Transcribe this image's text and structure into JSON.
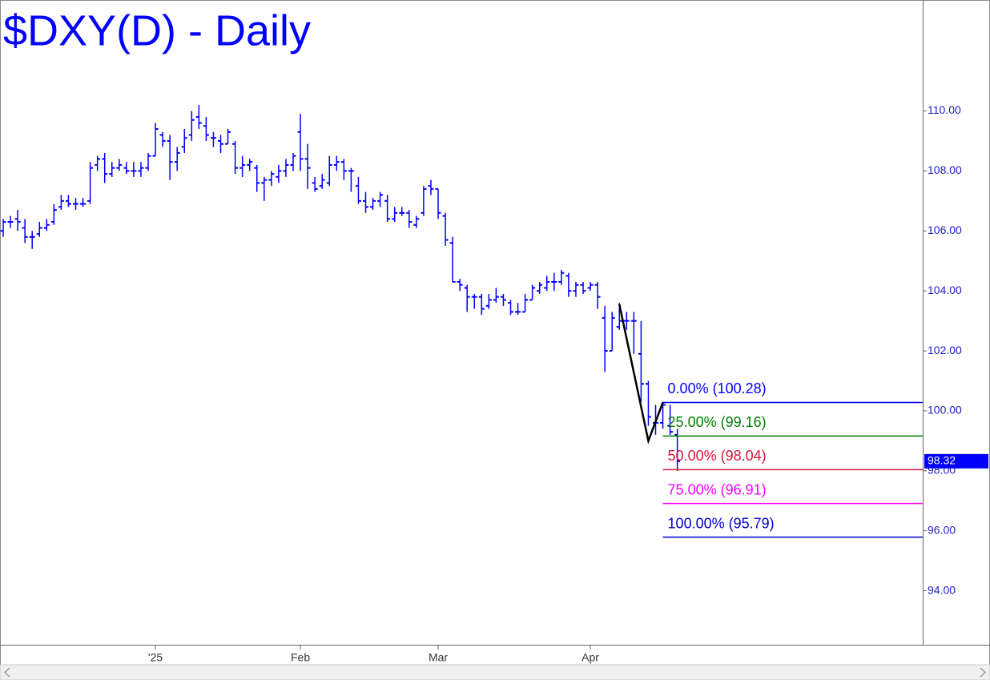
{
  "chart_data": {
    "type": "ohlc",
    "title": "$DXY(D) - Daily",
    "color": "#0000ff",
    "categories": [
      null,
      null,
      null,
      null,
      null,
      null,
      null,
      null,
      null,
      null,
      null,
      null,
      null,
      null,
      null,
      null,
      null,
      null,
      null,
      null,
      null,
      "'25",
      null,
      null,
      null,
      null,
      null,
      null,
      null,
      null,
      null,
      null,
      null,
      null,
      null,
      null,
      null,
      null,
      null,
      null,
      null,
      "Feb",
      null,
      null,
      null,
      null,
      null,
      null,
      null,
      null,
      null,
      null,
      null,
      null,
      null,
      null,
      null,
      null,
      null,
      null,
      "Mar",
      null,
      null,
      null,
      null,
      null,
      null,
      null,
      null,
      null,
      null,
      null,
      null,
      null,
      null,
      null,
      null,
      null,
      null,
      null,
      null,
      "Apr",
      null,
      null,
      null,
      null,
      null,
      null,
      null,
      null,
      null,
      null,
      null,
      null
    ],
    "open": [
      106.0,
      106.3,
      106.4,
      106.1,
      105.8,
      105.9,
      106.1,
      106.3,
      106.8,
      107.0,
      106.9,
      106.9,
      107.0,
      108.2,
      108.4,
      107.9,
      108.1,
      108.1,
      108.0,
      108.0,
      108.1,
      108.5,
      109.2,
      109.0,
      108.3,
      108.8,
      109.2,
      109.8,
      109.5,
      109.1,
      109.0,
      108.9,
      108.9,
      108.1,
      108.2,
      108.1,
      107.6,
      107.7,
      107.8,
      108.0,
      108.2,
      109.3,
      108.4,
      107.6,
      107.5,
      107.6,
      108.2,
      108.3,
      108.0,
      107.5,
      107.0,
      106.8,
      107.0,
      107.0,
      106.4,
      106.6,
      106.6,
      106.2,
      106.6,
      107.5,
      107.4,
      106.5,
      105.6,
      104.3,
      104.1,
      103.8,
      103.8,
      103.5,
      103.7,
      103.8,
      103.6,
      103.3,
      103.3,
      103.7,
      104.0,
      104.1,
      104.3,
      104.3,
      104.5,
      104.0,
      104.2,
      104.1,
      104.2,
      103.1,
      102.0,
      102.8,
      103.0,
      103.0,
      101.9,
      100.9,
      99.6,
      99.6,
      99.5,
      99.2
    ],
    "high": [
      106.4,
      106.5,
      106.7,
      106.4,
      106.0,
      106.3,
      106.4,
      106.9,
      107.2,
      107.2,
      107.1,
      107.1,
      108.3,
      108.5,
      108.6,
      108.3,
      108.4,
      108.3,
      108.3,
      108.3,
      108.6,
      109.6,
      109.3,
      109.2,
      108.8,
      109.4,
      110.0,
      110.2,
      109.8,
      109.3,
      109.2,
      109.4,
      109.0,
      108.5,
      108.4,
      108.2,
      107.8,
      108.0,
      108.2,
      108.4,
      108.6,
      109.9,
      108.9,
      107.8,
      107.9,
      108.5,
      108.5,
      108.4,
      108.1,
      107.8,
      107.3,
      107.1,
      107.3,
      107.2,
      106.8,
      106.8,
      106.7,
      106.5,
      107.5,
      107.7,
      107.4,
      106.6,
      105.8,
      104.4,
      104.2,
      103.9,
      103.9,
      103.9,
      104.1,
      103.9,
      103.7,
      103.6,
      103.9,
      104.2,
      104.3,
      104.5,
      104.6,
      104.7,
      104.6,
      104.3,
      104.3,
      104.3,
      104.3,
      103.5,
      103.3,
      103.6,
      103.3,
      103.3,
      103.0,
      101.0,
      100.2,
      100.3,
      100.2,
      99.4
    ],
    "low": [
      105.8,
      106.1,
      106.0,
      105.6,
      105.4,
      105.8,
      106.0,
      106.2,
      106.7,
      106.8,
      106.7,
      106.8,
      106.9,
      108.0,
      107.6,
      107.8,
      108.0,
      107.9,
      107.8,
      107.8,
      108.0,
      108.5,
      108.8,
      107.7,
      108.0,
      108.6,
      109.0,
      109.4,
      109.0,
      108.8,
      108.6,
      108.9,
      107.9,
      107.8,
      108.0,
      107.3,
      107.0,
      107.5,
      107.6,
      107.8,
      108.0,
      108.0,
      107.4,
      107.3,
      107.4,
      107.5,
      108.0,
      107.7,
      107.3,
      106.9,
      106.6,
      106.7,
      106.8,
      106.3,
      106.3,
      106.5,
      106.1,
      106.1,
      106.5,
      107.2,
      106.4,
      105.5,
      104.3,
      104.0,
      103.3,
      103.4,
      103.2,
      103.4,
      103.6,
      103.5,
      103.2,
      103.2,
      103.3,
      103.7,
      103.9,
      104.0,
      104.0,
      104.2,
      103.8,
      103.8,
      103.9,
      104.0,
      103.4,
      101.3,
      102.0,
      102.7,
      102.7,
      101.9,
      100.3,
      99.5,
      99.2,
      99.4,
      99.2,
      98.0
    ],
    "close": [
      106.3,
      106.3,
      106.3,
      105.8,
      105.8,
      106.1,
      106.2,
      106.7,
      107.0,
      106.9,
      106.9,
      106.9,
      108.1,
      108.4,
      107.9,
      108.1,
      108.2,
      108.0,
      108.0,
      108.1,
      108.5,
      109.4,
      109.0,
      108.3,
      108.6,
      109.1,
      109.7,
      109.6,
      109.2,
      109.1,
      108.9,
      109.3,
      108.1,
      108.2,
      108.3,
      107.6,
      107.7,
      107.9,
      108.0,
      108.2,
      108.5,
      108.4,
      108.1,
      107.4,
      107.7,
      108.2,
      108.3,
      108.0,
      108.0,
      107.0,
      106.8,
      107.0,
      107.2,
      106.4,
      106.6,
      106.6,
      106.3,
      106.4,
      107.4,
      107.4,
      106.6,
      105.7,
      104.3,
      104.2,
      103.8,
      103.8,
      103.4,
      103.7,
      103.8,
      103.7,
      103.3,
      103.3,
      103.7,
      104.1,
      104.2,
      104.3,
      104.3,
      104.6,
      104.0,
      104.2,
      104.0,
      104.2,
      103.8,
      102.0,
      103.1,
      103.0,
      103.0,
      103.0,
      100.9,
      99.8,
      99.6,
      100.2,
      99.3,
      98.32
    ],
    "ylim": [
      92.2,
      113.7
    ],
    "yticks": [
      {
        "value": 94,
        "label": "94.00"
      },
      {
        "value": 96,
        "label": "96.00"
      },
      {
        "value": 98,
        "label": "98.00"
      },
      {
        "value": 100,
        "label": "100.00"
      },
      {
        "value": 102,
        "label": "102.00"
      },
      {
        "value": 104,
        "label": "104.00"
      },
      {
        "value": 106,
        "label": "106.00"
      },
      {
        "value": 108,
        "label": "108.00"
      },
      {
        "value": 110,
        "label": "110.00"
      }
    ],
    "swing": {
      "x": [
        85,
        89,
        91
      ],
      "values": [
        103.55,
        99.0,
        100.28
      ],
      "color": "#000000"
    },
    "fib_levels": [
      {
        "value": 100.28,
        "label": "0.00% (100.28)",
        "color": "#0000ff"
      },
      {
        "value": 99.16,
        "label": "25.00% (99.16)",
        "color": "#008000"
      },
      {
        "value": 98.04,
        "label": "50.00% (98.04)",
        "color": "#dc143c"
      },
      {
        "value": 96.91,
        "label": "75.00% (96.91)",
        "color": "#ff00ff"
      },
      {
        "value": 95.79,
        "label": "100.00% (95.79)",
        "color": "#0000cd"
      }
    ],
    "last_price": 98.32
  }
}
